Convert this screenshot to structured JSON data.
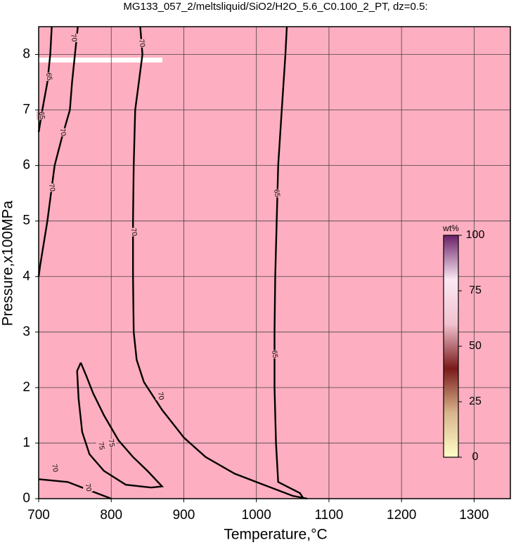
{
  "chart_data": {
    "type": "contour",
    "title": "MG133_057_2/meltsliquid/SiO2/H2O_5.6_C0.100_2_PT, dz=0.5:",
    "x_label": "Temperature,°C",
    "y_label": "Pressure,x100MPa",
    "xlim": [
      700,
      1350
    ],
    "ylim": [
      0,
      8.5
    ],
    "xticks": [
      700,
      800,
      900,
      1000,
      1100,
      1200,
      1300
    ],
    "yticks": [
      0,
      1,
      2,
      3,
      4,
      5,
      6,
      7,
      8
    ],
    "grid": true,
    "background": "#fdaec0",
    "colorbar": {
      "label": "wt%",
      "lim": [
        0,
        100
      ],
      "ticks": [
        0,
        25,
        50,
        75,
        100
      ],
      "colors": [
        "#ffffc8",
        "#d9b48c",
        "#7a1a1a",
        "#f2c2cf",
        "#fbe8f2",
        "#6b2068"
      ]
    },
    "contours": [
      {
        "level": 70,
        "x": [
          840,
          843,
          838,
          833,
          831,
          830,
          830,
          831,
          835,
          845,
          870,
          900,
          930,
          970,
          1010,
          1050,
          1070
        ],
        "y": [
          8.5,
          8.0,
          7.5,
          7.0,
          6.0,
          5.0,
          4.0,
          3.0,
          2.5,
          2.1,
          1.6,
          1.1,
          0.75,
          0.45,
          0.25,
          0.05,
          0
        ],
        "labels": [
          [
            842,
            8.2
          ],
          [
            831,
            4.8
          ],
          [
            868,
            1.85
          ]
        ]
      },
      {
        "level": 65,
        "x": [
          1042,
          1040,
          1035,
          1030,
          1028,
          1026,
          1025,
          1025,
          1027,
          1030,
          1045,
          1060,
          1065
        ],
        "y": [
          8.5,
          8.0,
          7.0,
          6.0,
          5.0,
          4.0,
          3.0,
          2.0,
          1.0,
          0.3,
          0.2,
          0.1,
          0
        ],
        "labels": [
          [
            1028,
            5.5
          ],
          [
            1025,
            2.6
          ]
        ]
      },
      {
        "level": 70,
        "x": [
          754,
          750,
          746,
          743,
          732,
          722,
          712,
          702,
          700
        ],
        "y": [
          8.5,
          8.0,
          7.5,
          7.0,
          6.5,
          6.0,
          5.0,
          4.2,
          4.0
        ],
        "labels": [
          [
            748,
            8.3
          ],
          [
            733,
            6.6
          ],
          [
            718,
            5.6
          ]
        ]
      },
      {
        "level": 65,
        "x": [
          718,
          716,
          712,
          705,
          700
        ],
        "y": [
          8.5,
          8.0,
          7.5,
          7.0,
          6.6
        ],
        "labels": [
          [
            714,
            7.6
          ],
          [
            704,
            6.9
          ]
        ]
      },
      {
        "level": 75,
        "x": [
          758,
          766,
          775,
          790,
          810,
          830,
          850,
          870,
          855,
          820,
          790,
          770,
          760,
          755,
          753,
          758
        ],
        "y": [
          2.45,
          2.2,
          1.9,
          1.5,
          1.05,
          0.75,
          0.5,
          0.22,
          0.2,
          0.25,
          0.5,
          0.8,
          1.2,
          1.8,
          2.3,
          2.45
        ],
        "labels": [
          [
            786,
            0.95
          ],
          [
            800,
            1.0
          ]
        ]
      },
      {
        "level": 70,
        "x": [
          700,
          740,
          780,
          800
        ],
        "y": [
          0.35,
          0.3,
          0.1,
          0
        ],
        "labels": [
          [
            722,
            0.55
          ],
          [
            768,
            0.2
          ]
        ]
      }
    ]
  }
}
